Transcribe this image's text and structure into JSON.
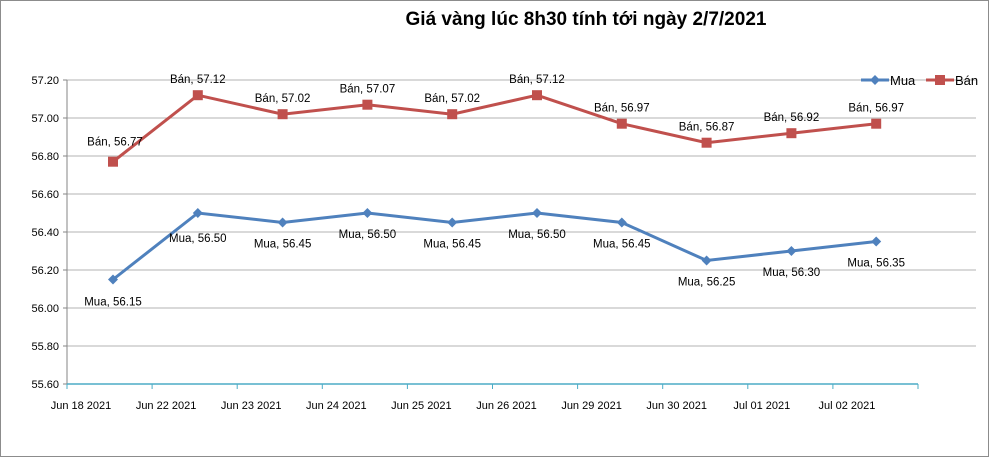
{
  "chart_data": {
    "type": "line",
    "title": "Giá vàng lúc 8h30 tính tới ngày 2/7/2021",
    "xlabel": "",
    "ylabel": "",
    "categories": [
      "Jun 18 2021",
      "Jun 22 2021",
      "Jun 23 2021",
      "Jun 24 2021",
      "Jun 25 2021",
      "Jun 26 2021",
      "Jun 29 2021",
      "Jun 30 2021",
      "Jul 01 2021",
      "Jul 02 2021"
    ],
    "ylim": [
      55.6,
      57.2
    ],
    "yticks": [
      "55.60",
      "55.80",
      "56.00",
      "56.20",
      "56.40",
      "56.60",
      "56.80",
      "57.00",
      "57.20"
    ],
    "grid": true,
    "legend": "top-right",
    "series": [
      {
        "name": "Mua",
        "color": "#4f81bd",
        "marker": "diamond",
        "values": [
          56.15,
          56.5,
          56.45,
          56.5,
          56.45,
          56.5,
          56.45,
          56.25,
          56.3,
          56.35
        ],
        "labels": [
          "Mua, 56.15",
          "Mua, 56.50",
          "Mua, 56.45",
          "Mua, 56.50",
          "Mua, 56.45",
          "Mua, 56.50",
          "Mua, 56.45",
          "Mua, 56.25",
          "Mua, 56.30",
          "Mua, 56.35"
        ]
      },
      {
        "name": "Bán",
        "color": "#c0504d",
        "marker": "square",
        "values": [
          56.77,
          57.12,
          57.02,
          57.07,
          57.02,
          57.12,
          56.97,
          56.87,
          56.92,
          56.97
        ],
        "labels": [
          "Bán, 56.77",
          "Bán, 57.12",
          "Bán, 57.02",
          "Bán, 57.07",
          "Bán, 57.02",
          "Bán, 57.12",
          "Bán, 56.97",
          "Bán, 56.87",
          "Bán, 56.92",
          "Bán, 56.97"
        ]
      }
    ]
  }
}
